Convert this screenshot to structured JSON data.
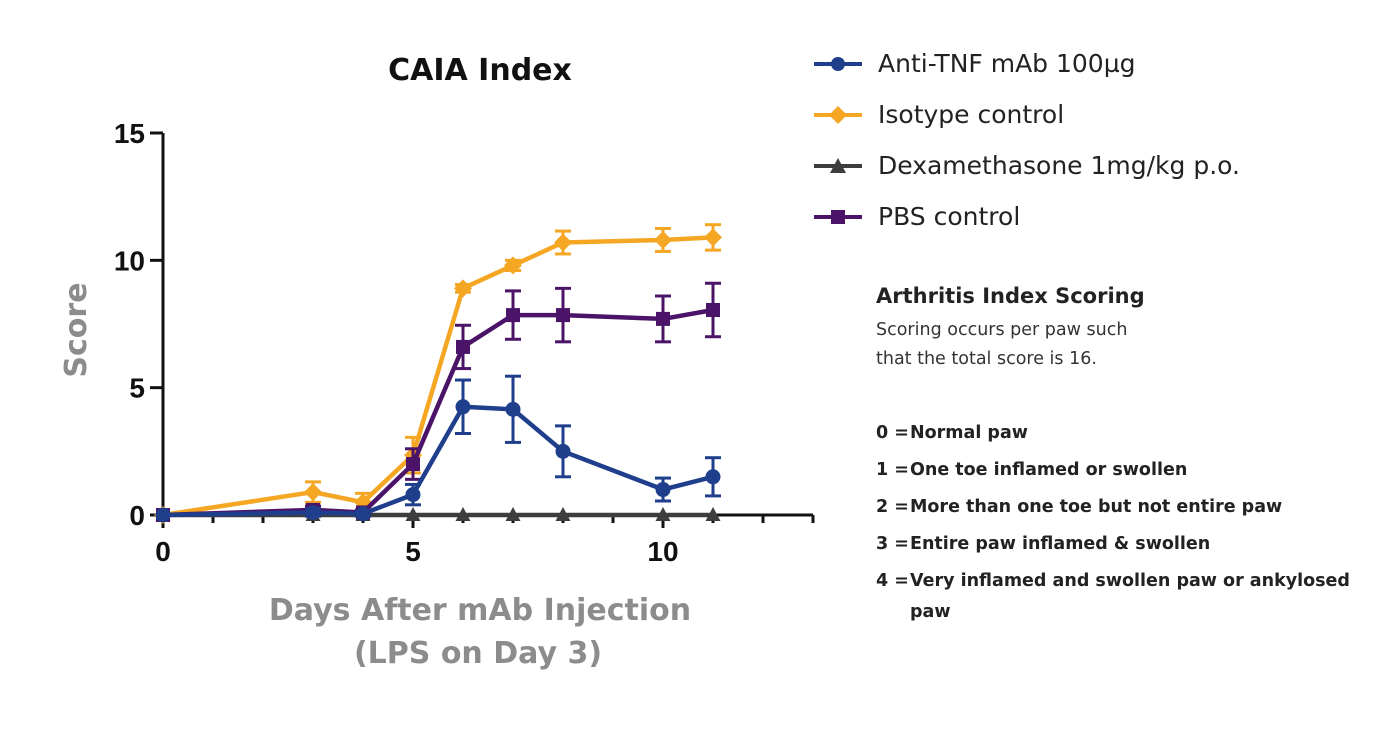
{
  "chart_data": {
    "type": "line",
    "title": "CAIA Index",
    "xlabel": "Days After mAb Injection",
    "xlabel_line2": "(LPS on Day 3)",
    "ylabel": "Score",
    "xlim": [
      0,
      13
    ],
    "ylim": [
      0,
      15
    ],
    "xticks": [
      0,
      5,
      10
    ],
    "yticks": [
      0,
      5,
      10,
      15
    ],
    "legend_position": "top-right",
    "series": [
      {
        "name": "Anti-TNF mAb 100µg",
        "color": "#1f3e8c",
        "marker": "circle",
        "x": [
          0,
          3,
          4,
          5,
          6,
          7,
          8,
          10,
          11
        ],
        "y": [
          0,
          0.1,
          0.05,
          0.8,
          4.25,
          4.15,
          2.5,
          1.0,
          1.5
        ],
        "err": [
          0,
          0.15,
          0.1,
          0.4,
          1.05,
          1.3,
          1.0,
          0.45,
          0.75
        ]
      },
      {
        "name": "Isotype control",
        "color": "#f5a623",
        "marker": "diamond",
        "x": [
          0,
          3,
          4,
          5,
          6,
          7,
          8,
          10,
          11
        ],
        "y": [
          0,
          0.9,
          0.5,
          2.35,
          8.9,
          9.8,
          10.7,
          10.8,
          10.9
        ],
        "err": [
          0,
          0.4,
          0.35,
          0.7,
          0.15,
          0.2,
          0.45,
          0.45,
          0.5
        ]
      },
      {
        "name": "Dexamethasone 1mg/kg p.o.",
        "color": "#3d3d3d",
        "marker": "triangle",
        "x": [
          0,
          3,
          4,
          5,
          6,
          7,
          8,
          10,
          11
        ],
        "y": [
          0,
          0,
          0,
          0,
          0,
          0,
          0,
          0,
          0
        ],
        "err": [
          0,
          0,
          0,
          0,
          0,
          0,
          0,
          0,
          0
        ]
      },
      {
        "name": "PBS control",
        "color": "#4b1469",
        "marker": "square",
        "x": [
          0,
          3,
          4,
          5,
          6,
          7,
          8,
          10,
          11
        ],
        "y": [
          0,
          0.2,
          0.1,
          2.0,
          6.6,
          7.85,
          7.85,
          7.7,
          8.05
        ],
        "err": [
          0,
          0.15,
          0.1,
          0.6,
          0.85,
          0.95,
          1.05,
          0.9,
          1.05
        ]
      }
    ]
  },
  "scoring": {
    "title": "Arthritis Index Scoring",
    "description": "Scoring occurs per paw such that the total score is 16.",
    "desc_line1": "Scoring occurs per paw such",
    "desc_line2": "that the total score is 16.",
    "items": [
      {
        "key": "0 =",
        "text": "Normal paw"
      },
      {
        "key": "1 =",
        "text": "One toe inflamed or swollen"
      },
      {
        "key": "2 =",
        "text": "More than one toe but not entire paw"
      },
      {
        "key": "3 =",
        "text": "Entire paw inflamed & swollen"
      },
      {
        "key": "4 =",
        "text": "Very inflamed  and swollen paw or ankylosed paw"
      }
    ]
  }
}
